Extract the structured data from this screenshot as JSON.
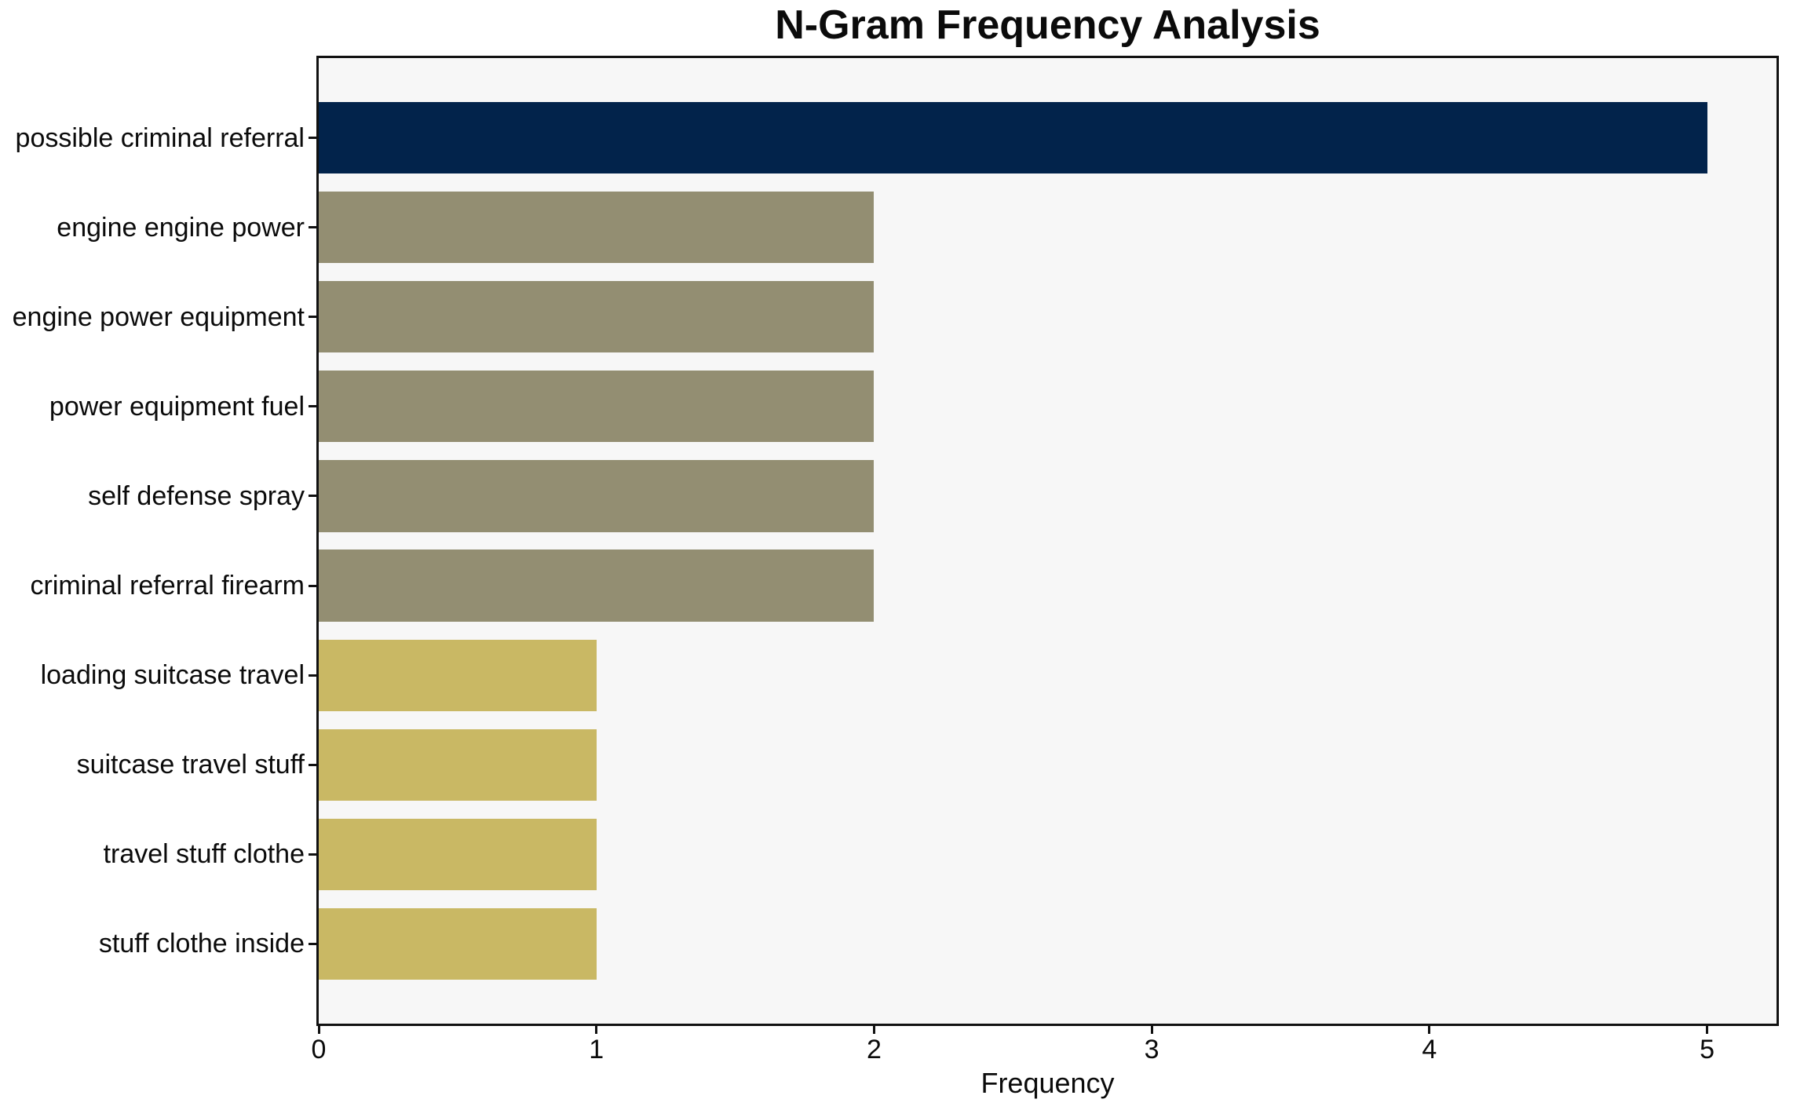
{
  "page": {
    "background": "#ffffff"
  },
  "chart_data": {
    "type": "bar",
    "orientation": "horizontal",
    "title": "N-Gram Frequency Analysis",
    "xlabel": "Frequency",
    "ylabel": "",
    "categories": [
      "possible criminal referral",
      "engine engine power",
      "engine power equipment",
      "power equipment fuel",
      "self defense spray",
      "criminal referral firearm",
      "loading suitcase travel",
      "suitcase travel stuff",
      "travel stuff clothe",
      "stuff clothe inside"
    ],
    "values": [
      5,
      2,
      2,
      2,
      2,
      2,
      1,
      1,
      1,
      1
    ],
    "bar_colors": [
      "#02234B",
      "#938E72",
      "#938E72",
      "#938E72",
      "#938E72",
      "#938E72",
      "#C9B864",
      "#C9B864",
      "#C9B864",
      "#C9B864"
    ],
    "xlim": [
      0,
      5.25
    ],
    "x_ticks": [
      "0",
      "1",
      "2",
      "3",
      "4",
      "5"
    ],
    "x_tick_values": [
      0,
      1,
      2,
      3,
      4,
      5
    ],
    "grid": false,
    "legend": null,
    "plot_background": "#F7F7F7",
    "axis_color": "#111111",
    "text_color": "#0B0B0B"
  }
}
